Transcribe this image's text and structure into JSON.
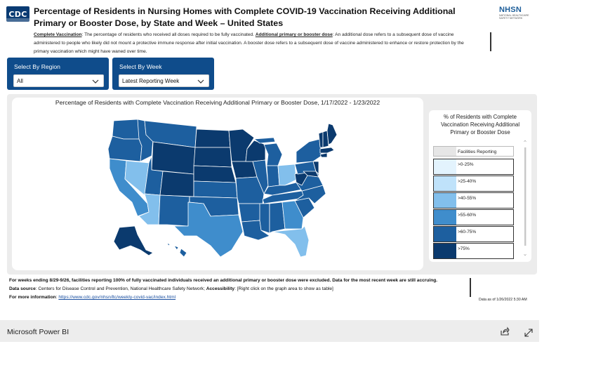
{
  "header": {
    "logo_text": "CDC",
    "title": "Percentage of Residents in Nursing Homes with Complete COVID-19 Vaccination Receiving Additional Primary or Booster Dose, by State and Week – United States",
    "nhsn_logo": "NHSN",
    "nhsn_sub": "National Healthcare Safety Network"
  },
  "description": {
    "term1": "Complete Vaccination",
    "def1": ": The percentage of residents who received all doses required to be fully vaccinated.",
    "term2": "Additional primary or booster dose",
    "def2": ":  An additional dose refers to a subsequent dose of vaccine administered to people who likely did not mount a protective immune response after initial vaccination. A booster dose refers to a subsequent dose of vaccine administered to enhance or restore protection by the primary vaccination which might have waned over time."
  },
  "filters": {
    "region": {
      "label": "Select By Region",
      "value": "All"
    },
    "week": {
      "label": "Select By Week",
      "value": "Latest Reporting Week"
    }
  },
  "map": {
    "title": "Percentage of Residents with Complete Vaccination Receiving Additional Primary or Booster Dose, 1/17/2022 - 1/23/2022"
  },
  "legend": {
    "title": "% of Residents with Complete Vaccination Receiving Additional Primary or Booster Dose",
    "items": [
      {
        "label": "Facilities Reporting",
        "color": "#e6e6e6"
      },
      {
        "label": ">0-25%",
        "color": "#e3f3fd"
      },
      {
        "label": ">25-40%",
        "color": "#bfe2fa"
      },
      {
        "label": ">40-55%",
        "color": "#82bfec"
      },
      {
        "label": ">55-60%",
        "color": "#3f8dcc"
      },
      {
        "label": ">60-75%",
        "color": "#1d5f9f"
      },
      {
        "label": ">75%",
        "color": "#0b3a6e"
      }
    ]
  },
  "footer": {
    "note": "For weeks ending 8/29-9/26, facilities reporting 100% of fully vaccinated individuals received an additional primary or booster dose were excluded.  Data for the most recent week are still accruing.",
    "source_label": "Data source",
    "source_text": ": Centers for Disease Control and Prevention, National Healthcare Safety Network; ",
    "accessibility_label": "Accessibility",
    "accessibility_text": ": [Right click on the graph area to show as table]",
    "more_label": "For more information",
    "more_link": "https://www.cdc.gov/nhsn/ltc/weekly-covid-vac/index.html",
    "date_note": "Data as of 1/26/2022 5:30 AM"
  },
  "powerbi": {
    "brand": "Microsoft Power BI"
  }
}
